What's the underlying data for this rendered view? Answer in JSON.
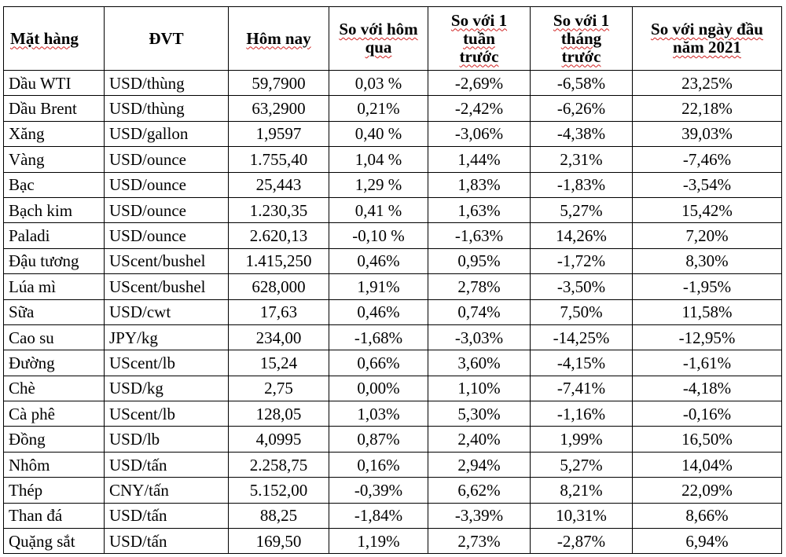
{
  "table": {
    "headers": [
      "Mặt hàng",
      "ĐVT",
      "Hôm nay",
      "So với hôm qua",
      "So với 1 tuần trước",
      "So với 1 tháng trước",
      "So với ngày đầu năm 2021"
    ],
    "rows": [
      [
        "Dầu WTI",
        "USD/thùng",
        "59,7900",
        "0,03 %",
        "-2,69%",
        "-6,58%",
        "23,25%"
      ],
      [
        "Dầu Brent",
        "USD/thùng",
        "63,2900",
        "0,21%",
        "-2,42%",
        "-6,26%",
        "22,18%"
      ],
      [
        "Xăng",
        "USD/gallon",
        "1,9597",
        "0,40 %",
        "-3,06%",
        "-4,38%",
        "39,03%"
      ],
      [
        "Vàng",
        "USD/ounce",
        "1.755,40",
        "1,04 %",
        "1,44%",
        "2,31%",
        "-7,46%"
      ],
      [
        "Bạc",
        "USD/ounce",
        "25,443",
        "1,29 %",
        "1,83%",
        "-1,83%",
        "-3,54%"
      ],
      [
        "Bạch kim",
        "USD/ounce",
        "1.230,35",
        "0,41 %",
        "1,63%",
        "5,27%",
        "15,42%"
      ],
      [
        "Paladi",
        "USD/ounce",
        "2.620,13",
        "-0,10 %",
        "-1,63%",
        "14,26%",
        "7,20%"
      ],
      [
        "Đậu tương",
        "UScent/bushel",
        "1.415,250",
        "0,46%",
        "0,95%",
        "-1,72%",
        "8,30%"
      ],
      [
        "Lúa mì",
        "UScent/bushel",
        "628,000",
        "1,91%",
        "2,78%",
        "-3,50%",
        "-1,95%"
      ],
      [
        "Sữa",
        "USD/cwt",
        "17,63",
        "0,46%",
        "0,74%",
        "7,50%",
        "11,58%"
      ],
      [
        "Cao su",
        "JPY/kg",
        "234,00",
        "-1,68%",
        "-3,03%",
        "-14,25%",
        "-12,95%"
      ],
      [
        "Đường",
        "UScent/lb",
        "15,24",
        "0,66%",
        "3,60%",
        "-4,15%",
        "-1,61%"
      ],
      [
        "Chè",
        "USD/kg",
        "2,75",
        "0,00%",
        "1,10%",
        "-7,41%",
        "-4,18%"
      ],
      [
        "Cà phê",
        "UScent/lb",
        "128,05",
        "1,03%",
        "5,30%",
        "-1,16%",
        "-0,16%"
      ],
      [
        "Đồng",
        "USD/lb",
        "4,0995",
        "0,87%",
        "2,40%",
        "1,99%",
        "16,50%"
      ],
      [
        "Nhôm",
        "USD/tấn",
        "2.258,75",
        "0,16%",
        "2,94%",
        "5,27%",
        "14,04%"
      ],
      [
        "Thép",
        "CNY/tấn",
        "5.152,00",
        "-0,39%",
        "6,62%",
        "8,21%",
        "22,09%"
      ],
      [
        "Than đá",
        "USD/tấn",
        "88,25",
        "-1,84%",
        "-3,39%",
        "10,31%",
        "8,66%"
      ],
      [
        "Quặng sắt",
        "USD/tấn",
        "169,50",
        "1,19%",
        "2,73%",
        "-2,87%",
        "6,94%"
      ]
    ]
  }
}
